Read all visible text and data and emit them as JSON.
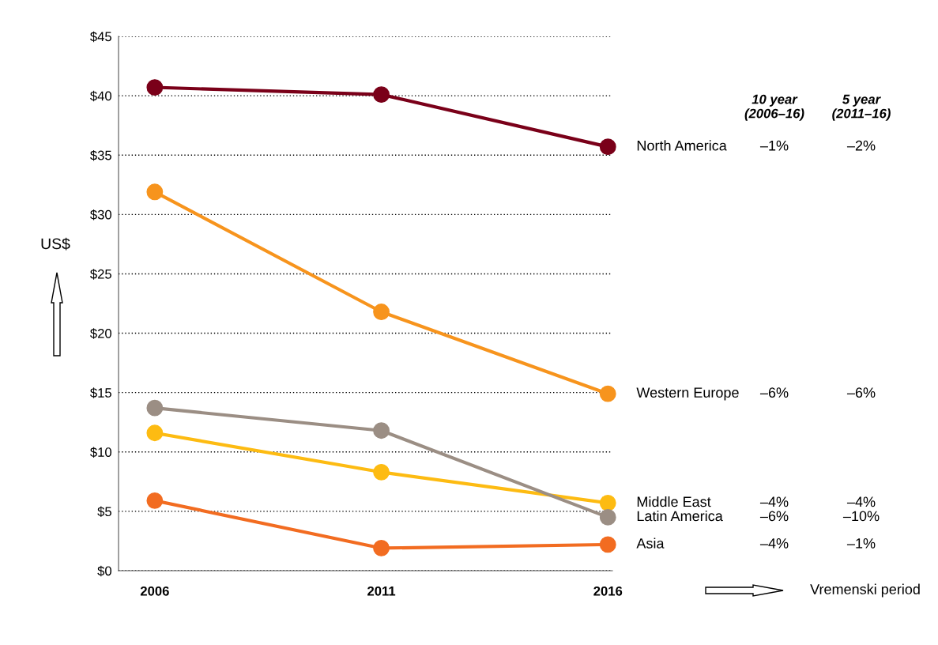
{
  "chart_data": {
    "type": "line",
    "ylabel": "US$",
    "categories": [
      "2006",
      "2011",
      "2016"
    ],
    "series": [
      {
        "name": "North America",
        "color": "#7a0019",
        "values": [
          40.7,
          40.1,
          35.7
        ]
      },
      {
        "name": "Western Europe",
        "color": "#f7941d",
        "values": [
          31.9,
          21.8,
          14.9
        ]
      },
      {
        "name": "Middle East",
        "color": "#fdbb12",
        "values": [
          11.6,
          8.3,
          5.7
        ]
      },
      {
        "name": "Latin America",
        "color": "#9b8e84",
        "values": [
          13.7,
          11.8,
          4.5
        ]
      },
      {
        "name": "Asia",
        "color": "#f26c21",
        "values": [
          5.9,
          1.9,
          2.2
        ]
      }
    ],
    "annotations": [
      "10 year\n(2006–16)",
      "5 year\n(2011–16)",
      "–1%",
      "–2%",
      "–6%",
      "–6%",
      "–4%",
      "–4%",
      "–6%",
      "–10%",
      "–4%",
      "–1%",
      "Vremenski period"
    ],
    "ylim": [
      0,
      45
    ],
    "yticks": [
      {
        "value": 0,
        "label": "$0"
      },
      {
        "value": 5,
        "label": "$5"
      },
      {
        "value": 10,
        "label": "$10"
      },
      {
        "value": 15,
        "label": "$15"
      },
      {
        "value": 20,
        "label": "$20"
      },
      {
        "value": 25,
        "label": "$25"
      },
      {
        "value": 30,
        "label": "$30"
      },
      {
        "value": 35,
        "label": "$35"
      },
      {
        "value": 40,
        "label": "$40"
      },
      {
        "value": 45,
        "label": "$45"
      }
    ],
    "grid": "y",
    "marker": "circle",
    "line_style": "solid",
    "legend": false
  }
}
